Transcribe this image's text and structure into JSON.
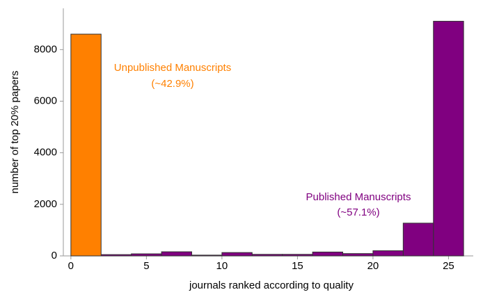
{
  "chart_data": {
    "type": "histogram",
    "xlabel": "journals ranked according to quality",
    "ylabel": "number of top 20% papers",
    "bins": [
      0,
      2,
      4,
      6,
      8,
      10,
      12,
      14,
      16,
      18,
      20,
      22,
      24,
      26
    ],
    "values": [
      8600,
      50,
      80,
      160,
      30,
      130,
      60,
      60,
      150,
      90,
      200,
      1270,
      9100
    ],
    "colors": [
      "#ff8000",
      "#800080",
      "#800080",
      "#800080",
      "#800080",
      "#800080",
      "#800080",
      "#800080",
      "#800080",
      "#800080",
      "#800080",
      "#800080",
      "#800080"
    ],
    "xlim": [
      -0.5,
      26.5
    ],
    "ylim": [
      0,
      9600
    ],
    "xticks": [
      0,
      5,
      10,
      15,
      20,
      25
    ],
    "yticks": [
      0,
      2000,
      4000,
      6000,
      8000
    ],
    "annotations": [
      {
        "lines": [
          "Unpublished Manuscripts",
          "(~42.9%)"
        ],
        "color": "#ff8000"
      },
      {
        "lines": [
          "Published Manuscripts",
          "(~57.1%)"
        ],
        "color": "#800080"
      }
    ]
  }
}
